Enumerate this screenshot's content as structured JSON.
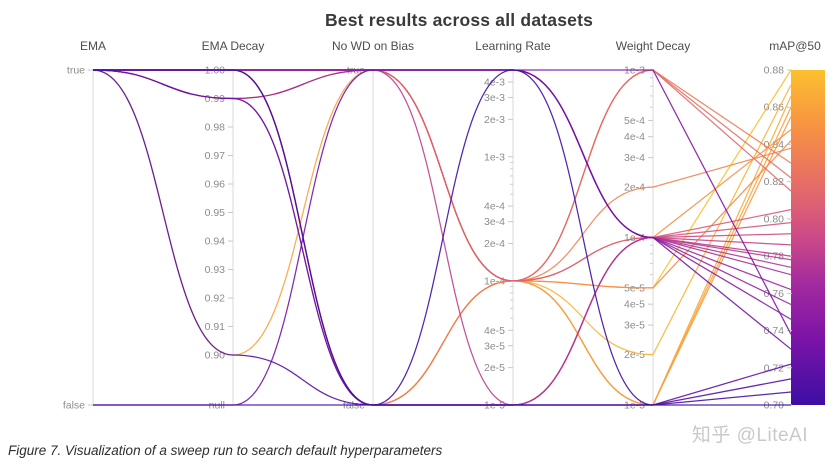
{
  "title": "Best results across all datasets",
  "caption": "Figure 7. Visualization of a sweep run to search default hyperparameters",
  "watermark": "知乎 @LiteAI",
  "chart_data": {
    "type": "parallel-coordinates",
    "title": "Best results across all datasets",
    "color_metric": "mAP@50",
    "colorbar": {
      "label": "mAP@50",
      "top_value": 0.88,
      "bottom_value": 0.7
    },
    "axes": [
      {
        "name": "EMA",
        "scale": "cat",
        "categories": [
          "true",
          "false"
        ],
        "ticks": [
          [
            "true",
            "true"
          ],
          [
            "false",
            "false"
          ]
        ]
      },
      {
        "name": "EMA Decay",
        "scale": "decay",
        "ticks": [
          [
            "1.00",
            1.0
          ],
          [
            "0.99",
            0.99
          ],
          [
            "0.98",
            0.98
          ],
          [
            "0.97",
            0.97
          ],
          [
            "0.96",
            0.96
          ],
          [
            "0.95",
            0.95
          ],
          [
            "0.94",
            0.94
          ],
          [
            "0.93",
            0.93
          ],
          [
            "0.92",
            0.92
          ],
          [
            "0.91",
            0.91
          ],
          [
            "0.90",
            0.9
          ],
          [
            "null",
            "null"
          ]
        ]
      },
      {
        "name": "No WD on Bias",
        "scale": "cat",
        "categories": [
          "true",
          "false"
        ],
        "ticks": [
          [
            "true",
            "true"
          ],
          [
            "false",
            "false"
          ]
        ]
      },
      {
        "name": "Learning Rate",
        "scale": "log",
        "domain": [
          0.005,
          1e-05
        ],
        "ticks": [
          [
            "4e-3",
            0.004
          ],
          [
            "3e-3",
            0.003
          ],
          [
            "2e-3",
            0.002
          ],
          [
            "1e-3",
            0.001
          ],
          [
            "4e-4",
            0.0004
          ],
          [
            "3e-4",
            0.0003
          ],
          [
            "2e-4",
            0.0002
          ],
          [
            "1e-4",
            0.0001
          ],
          [
            "4e-5",
            4e-05
          ],
          [
            "3e-5",
            3e-05
          ],
          [
            "2e-5",
            2e-05
          ],
          [
            "1e-5",
            1e-05
          ]
        ],
        "minor": [
          0.0009,
          0.0008,
          0.0007,
          0.0006,
          0.0005,
          9e-05,
          8e-05,
          7e-05,
          6e-05,
          5e-05
        ]
      },
      {
        "name": "Weight Decay",
        "scale": "log",
        "domain": [
          0.001,
          1e-05
        ],
        "ticks": [
          [
            "1e-3",
            0.001
          ],
          [
            "5e-4",
            0.0005
          ],
          [
            "4e-4",
            0.0004
          ],
          [
            "3e-4",
            0.0003
          ],
          [
            "2e-4",
            0.0002
          ],
          [
            "1e-4",
            0.0001
          ],
          [
            "5e-5",
            5e-05
          ],
          [
            "4e-5",
            4e-05
          ],
          [
            "3e-5",
            3e-05
          ],
          [
            "2e-5",
            2e-05
          ],
          [
            "1e-5",
            1e-05
          ]
        ],
        "minor": [
          0.0009,
          0.0008,
          0.0007,
          0.0006,
          9e-05,
          8e-05,
          7e-05,
          6e-05
        ]
      },
      {
        "name": "mAP@50",
        "scale": "map",
        "domain": [
          0.88,
          0.7
        ],
        "ticks": [
          [
            "0.88",
            0.88
          ],
          [
            "0.86",
            0.86
          ],
          [
            "0.84",
            0.84
          ],
          [
            "0.82",
            0.82
          ],
          [
            "0.80",
            0.8
          ],
          [
            "0.78",
            0.78
          ],
          [
            "0.76",
            0.76
          ],
          [
            "0.74",
            0.74
          ],
          [
            "0.72",
            0.72
          ],
          [
            "0.70",
            0.7
          ]
        ]
      }
    ],
    "columns": [
      "ema",
      "ema_decay",
      "no_wd_on_bias",
      "learning_rate",
      "weight_decay",
      "map50"
    ],
    "runs": [
      [
        "true",
        0.99,
        "true",
        0.0001,
        5e-05,
        0.88
      ],
      [
        "true",
        1.0,
        "true",
        0.0001,
        2e-05,
        0.872
      ],
      [
        "true",
        1.0,
        "false",
        0.0001,
        1e-05,
        0.866
      ],
      [
        "true",
        0.9,
        "true",
        0.0001,
        1e-05,
        0.86
      ],
      [
        "true",
        1.0,
        "false",
        0.0001,
        1e-05,
        0.855
      ],
      [
        "true",
        1.0,
        "true",
        0.0001,
        0.0001,
        0.848
      ],
      [
        "true",
        1.0,
        "false",
        0.0001,
        5e-05,
        0.842
      ],
      [
        "true",
        1.0,
        "true",
        0.0001,
        0.0002,
        0.838
      ],
      [
        "true",
        1.0,
        "false",
        0.0001,
        0.001,
        0.83
      ],
      [
        "true",
        0.99,
        "true",
        0.0001,
        0.001,
        0.822
      ],
      [
        "true",
        1.0,
        "true",
        0.0001,
        0.001,
        0.815
      ],
      [
        "true",
        1.0,
        "true",
        0.0001,
        0.0001,
        0.805
      ],
      [
        "true",
        1.0,
        "false",
        1e-05,
        0.0001,
        0.798
      ],
      [
        "true",
        0.99,
        "false",
        1e-05,
        0.0001,
        0.792
      ],
      [
        "true",
        1.0,
        "false",
        1e-05,
        0.0001,
        0.786
      ],
      [
        "true",
        1.0,
        "true",
        1e-05,
        0.0001,
        0.78
      ],
      [
        "true",
        1.0,
        "true",
        0.005,
        0.0001,
        0.778
      ],
      [
        "true",
        1.0,
        "false",
        1e-05,
        0.0001,
        0.774
      ],
      [
        "true",
        1.0,
        "true",
        0.005,
        0.0001,
        0.77
      ],
      [
        "true",
        0.99,
        "true",
        0.005,
        0.0001,
        0.762
      ],
      [
        "true",
        1.0,
        "true",
        0.005,
        0.0001,
        0.754
      ],
      [
        "true",
        1.0,
        "true",
        0.005,
        0.0001,
        0.746
      ],
      [
        "true",
        1.0,
        "true",
        0.005,
        0.001,
        0.738
      ],
      [
        "false",
        "null",
        "true",
        0.005,
        0.0001,
        0.73
      ],
      [
        "true",
        0.99,
        "false",
        1e-05,
        1e-05,
        0.722
      ],
      [
        "true",
        0.9,
        "false",
        1e-05,
        1e-05,
        0.714
      ],
      [
        "false",
        "null",
        "false",
        1e-05,
        1e-05,
        0.707
      ],
      [
        "true",
        1.0,
        "false",
        0.005,
        1e-05,
        0.7
      ]
    ],
    "colormap": [
      [
        0.88,
        "#fcc02e"
      ],
      [
        0.848,
        "#f79044"
      ],
      [
        0.815,
        "#e4696b"
      ],
      [
        0.79,
        "#cc4a87"
      ],
      [
        0.765,
        "#a32a9e"
      ],
      [
        0.736,
        "#7d14a7"
      ],
      [
        0.7,
        "#3c0ea4"
      ]
    ],
    "style": {
      "axis_line": "#d9d9d9",
      "tick_label": "#8c8c8c",
      "header": "#4d4d4d",
      "title": "#3a3a3a"
    }
  }
}
